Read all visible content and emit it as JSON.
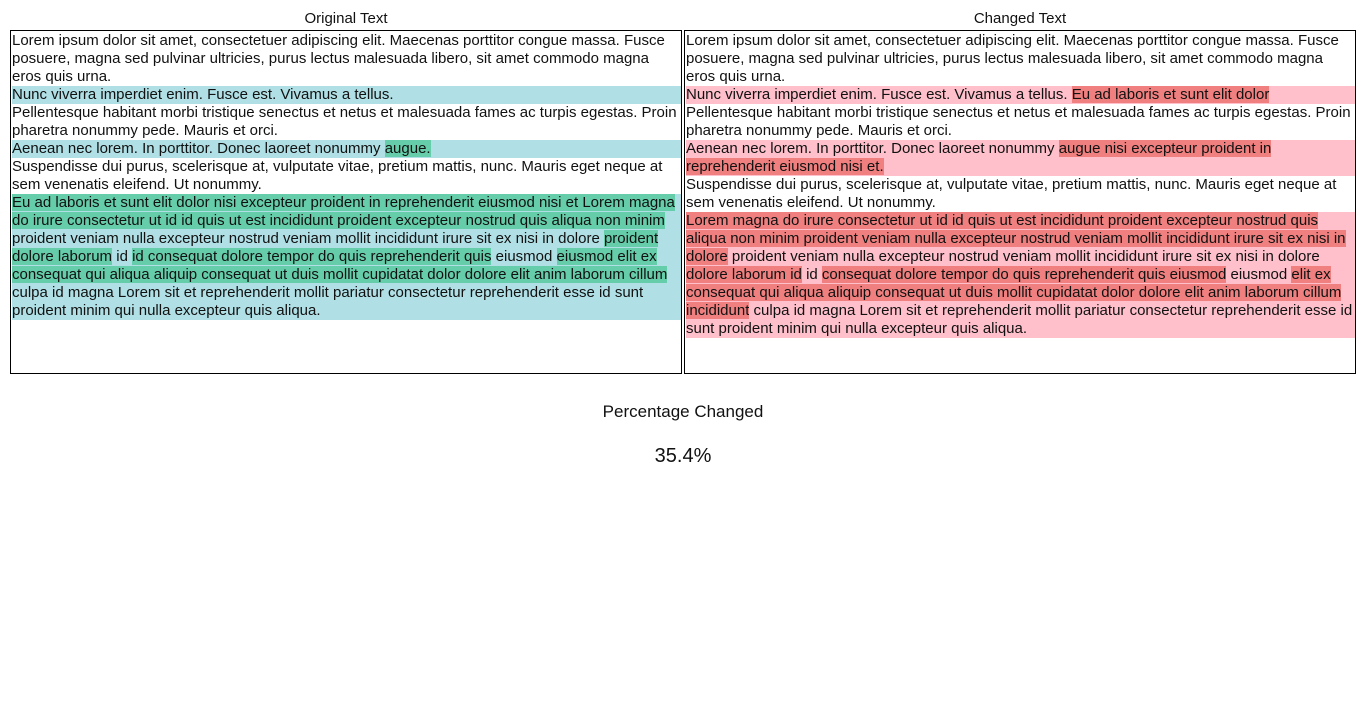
{
  "original": {
    "title": "Original Text",
    "lines": [
      [
        {
          "t": "Lorem ipsum dolor sit amet, consectetuer adipiscing elit. Maecenas porttitor congue massa. Fusce posuere, magna sed pulvinar ultricies, purus lectus malesuada libero, sit amet commodo magna eros quis urna.",
          "h": 0
        }
      ],
      [
        {
          "t": "Nunc viverra imperdiet enim. Fusce est. Vivamus a tellus.",
          "h": 1
        }
      ],
      [
        {
          "t": "Pellentesque habitant morbi tristique senectus et netus et malesuada fames ac turpis egestas. Proin pharetra nonummy pede. Mauris et orci.",
          "h": 0
        }
      ],
      [
        {
          "t": "Aenean nec lorem. In porttitor. Donec laoreet nonummy ",
          "h": 1
        },
        {
          "t": "augue.",
          "h": 2
        }
      ],
      [
        {
          "t": "Suspendisse dui purus, scelerisque at, vulputate vitae, pretium mattis, nunc. Mauris eget neque at sem venenatis eleifend. Ut nonummy.",
          "h": 0
        }
      ],
      [
        {
          "t": "Eu ad laboris et sunt elit dolor nisi excepteur proident in reprehenderit eiusmod nisi et Lorem magna do irure consectetur ut id id quis ut est incididunt proident excepteur nostrud quis aliqua non minim",
          "h": 2
        },
        {
          "t": " proident veniam nulla excepteur nostrud veniam mollit incididunt irure sit ex nisi in dolore ",
          "h": 1
        },
        {
          "t": "proident dolore laborum",
          "h": 2
        },
        {
          "t": " id ",
          "h": 1
        },
        {
          "t": "id consequat dolore tempor do quis reprehenderit quis",
          "h": 2
        },
        {
          "t": " eiusmod ",
          "h": 1
        },
        {
          "t": "eiusmod elit ex consequat qui aliqua aliquip consequat ut duis mollit cupidatat dolor dolore elit anim laborum cillum",
          "h": 2
        },
        {
          "t": " culpa id magna Lorem sit et reprehenderit mollit pariatur consectetur reprehenderit esse id sunt proident minim qui nulla excepteur quis aliqua.",
          "h": 1
        }
      ]
    ]
  },
  "changed": {
    "title": "Changed Text",
    "lines": [
      [
        {
          "t": "Lorem ipsum dolor sit amet, consectetuer adipiscing elit. Maecenas porttitor congue massa. Fusce posuere, magna sed pulvinar ultricies, purus lectus malesuada libero, sit amet commodo magna eros quis urna.",
          "h": 0
        }
      ],
      [
        {
          "t": "Nunc viverra imperdiet enim. Fusce est. Vivamus a tellus. ",
          "h": 1
        },
        {
          "t": "Eu ad laboris et sunt elit dolor",
          "h": 2
        }
      ],
      [
        {
          "t": "Pellentesque habitant morbi tristique senectus et netus et malesuada fames ac turpis egestas. Proin pharetra nonummy pede. Mauris et orci.",
          "h": 0
        }
      ],
      [
        {
          "t": "Aenean nec lorem. In porttitor. Donec laoreet nonummy ",
          "h": 1
        },
        {
          "t": "augue nisi excepteur proident in reprehenderit eiusmod nisi et.",
          "h": 2
        }
      ],
      [
        {
          "t": "Suspendisse dui purus, scelerisque at, vulputate vitae, pretium mattis, nunc. Mauris eget neque at sem venenatis eleifend. Ut nonummy.",
          "h": 0
        }
      ],
      [
        {
          "t": "Lorem magna do irure consectetur ut id id quis ut est incididunt proident excepteur nostrud quis aliqua non minim proident veniam nulla excepteur nostrud veniam mollit incididunt irure sit ex nisi in dolore",
          "h": 2
        },
        {
          "t": " proident veniam nulla excepteur nostrud veniam mollit incididunt irure sit ex nisi in dolore ",
          "h": 1
        },
        {
          "t": "dolore laborum id",
          "h": 2
        },
        {
          "t": " id ",
          "h": 1
        },
        {
          "t": "consequat dolore tempor do quis reprehenderit quis eiusmod",
          "h": 2
        },
        {
          "t": " eiusmod ",
          "h": 1
        },
        {
          "t": "elit ex consequat qui aliqua aliquip consequat ut duis mollit cupidatat dolor dolore elit anim laborum cillum incididunt",
          "h": 2
        },
        {
          "t": " culpa id magna Lorem sit et reprehenderit mollit pariatur consectetur reprehenderit esse id sunt proident minim qui nulla excepteur quis aliqua.",
          "h": 1
        }
      ]
    ]
  },
  "summary": {
    "label": "Percentage Changed",
    "value": "35.4%"
  },
  "colors": {
    "original_changed_line": "#b0e0e6",
    "original_changed_words": "#66cdaa",
    "changed_changed_line": "#ffc0cb",
    "changed_changed_words": "#f08080"
  }
}
